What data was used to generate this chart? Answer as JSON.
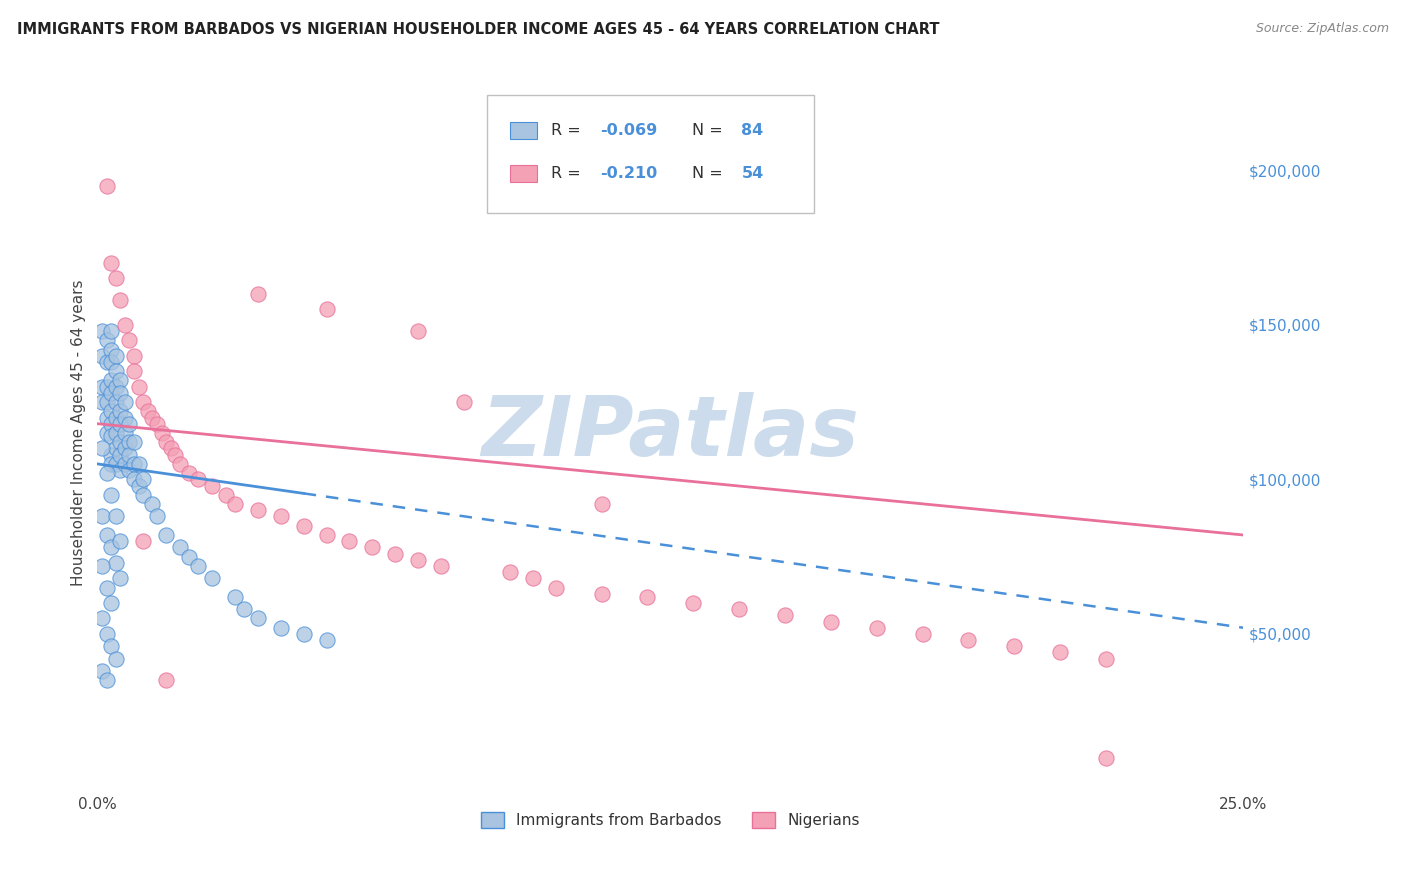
{
  "title": "IMMIGRANTS FROM BARBADOS VS NIGERIAN HOUSEHOLDER INCOME AGES 45 - 64 YEARS CORRELATION CHART",
  "source": "Source: ZipAtlas.com",
  "ylabel": "Householder Income Ages 45 - 64 years",
  "xlim": [
    0,
    0.25
  ],
  "ylim": [
    0,
    230000
  ],
  "yticks_right": [
    50000,
    100000,
    150000,
    200000
  ],
  "yticklabels_right": [
    "$50,000",
    "$100,000",
    "$150,000",
    "$200,000"
  ],
  "barbados_color": "#a8c4e0",
  "nigerian_color": "#f4a0b5",
  "barbados_line_color": "#4a90d9",
  "nigerian_line_color": "#e8709a",
  "watermark": "ZIPatlas",
  "watermark_color": "#ccdcec",
  "background_color": "#ffffff",
  "barbados_x": [
    0.001,
    0.001,
    0.001,
    0.001,
    0.002,
    0.002,
    0.002,
    0.002,
    0.002,
    0.002,
    0.003,
    0.003,
    0.003,
    0.003,
    0.003,
    0.003,
    0.003,
    0.003,
    0.003,
    0.003,
    0.004,
    0.004,
    0.004,
    0.004,
    0.004,
    0.004,
    0.004,
    0.004,
    0.005,
    0.005,
    0.005,
    0.005,
    0.005,
    0.005,
    0.005,
    0.006,
    0.006,
    0.006,
    0.006,
    0.006,
    0.007,
    0.007,
    0.007,
    0.007,
    0.008,
    0.008,
    0.008,
    0.009,
    0.009,
    0.01,
    0.01,
    0.012,
    0.013,
    0.015,
    0.018,
    0.02,
    0.022,
    0.025,
    0.03,
    0.032,
    0.035,
    0.04,
    0.045,
    0.05,
    0.001,
    0.002,
    0.003,
    0.004,
    0.005,
    0.001,
    0.002,
    0.003,
    0.001,
    0.002,
    0.003,
    0.004,
    0.001,
    0.002,
    0.001,
    0.002,
    0.003,
    0.004,
    0.005
  ],
  "barbados_y": [
    148000,
    140000,
    130000,
    125000,
    145000,
    138000,
    130000,
    125000,
    120000,
    115000,
    148000,
    142000,
    138000,
    132000,
    128000,
    122000,
    118000,
    114000,
    108000,
    105000,
    140000,
    135000,
    130000,
    125000,
    120000,
    115000,
    110000,
    105000,
    132000,
    128000,
    122000,
    118000,
    112000,
    108000,
    103000,
    125000,
    120000,
    115000,
    110000,
    105000,
    118000,
    112000,
    108000,
    103000,
    112000,
    105000,
    100000,
    105000,
    98000,
    100000,
    95000,
    92000,
    88000,
    82000,
    78000,
    75000,
    72000,
    68000,
    62000,
    58000,
    55000,
    52000,
    50000,
    48000,
    88000,
    82000,
    78000,
    73000,
    68000,
    72000,
    65000,
    60000,
    55000,
    50000,
    46000,
    42000,
    38000,
    35000,
    110000,
    102000,
    95000,
    88000,
    80000
  ],
  "nigerian_x": [
    0.002,
    0.003,
    0.004,
    0.005,
    0.006,
    0.007,
    0.008,
    0.008,
    0.009,
    0.01,
    0.011,
    0.012,
    0.013,
    0.014,
    0.015,
    0.016,
    0.017,
    0.018,
    0.02,
    0.022,
    0.025,
    0.028,
    0.03,
    0.035,
    0.04,
    0.045,
    0.05,
    0.055,
    0.06,
    0.065,
    0.07,
    0.075,
    0.08,
    0.09,
    0.095,
    0.1,
    0.11,
    0.12,
    0.13,
    0.14,
    0.15,
    0.16,
    0.17,
    0.18,
    0.19,
    0.2,
    0.21,
    0.22,
    0.035,
    0.05,
    0.07,
    0.11,
    0.22,
    0.01,
    0.015
  ],
  "nigerian_y": [
    195000,
    170000,
    165000,
    158000,
    150000,
    145000,
    140000,
    135000,
    130000,
    125000,
    122000,
    120000,
    118000,
    115000,
    112000,
    110000,
    108000,
    105000,
    102000,
    100000,
    98000,
    95000,
    92000,
    90000,
    88000,
    85000,
    82000,
    80000,
    78000,
    76000,
    74000,
    72000,
    125000,
    70000,
    68000,
    65000,
    63000,
    62000,
    60000,
    58000,
    56000,
    54000,
    52000,
    50000,
    48000,
    46000,
    44000,
    42000,
    160000,
    155000,
    148000,
    92000,
    10000,
    80000,
    35000
  ]
}
